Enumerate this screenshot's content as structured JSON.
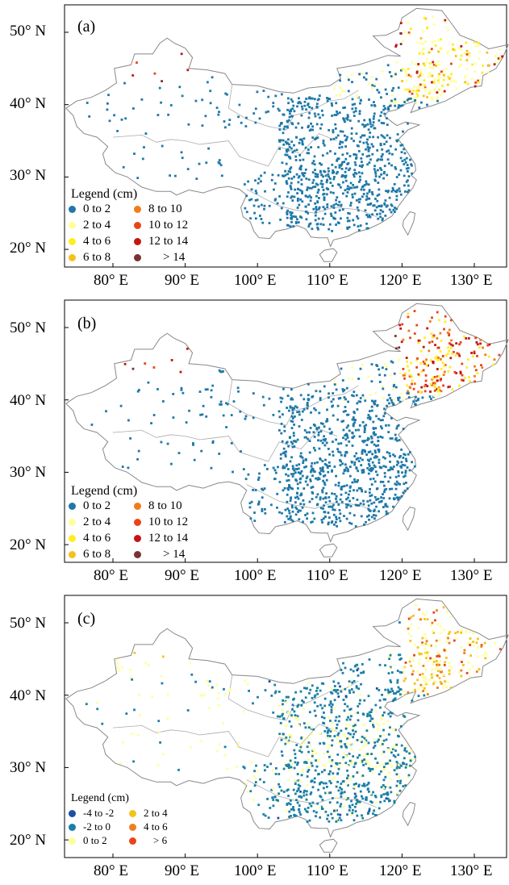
{
  "y_ticks": [
    "50° N",
    "40° N",
    "30° N",
    "20° N"
  ],
  "x_ticks": [
    "80° E",
    "90° E",
    "100° E",
    "110° E",
    "120° E",
    "130° E"
  ],
  "colors": {
    "c0_2": "#1f78a8",
    "c2_4": "#ffff9a",
    "c4_6": "#ffee22",
    "c6_8": "#f5c21b",
    "c8_10": "#f07c1a",
    "c10_12": "#e84418",
    "c12_14": "#c41414",
    "cgt14": "#7a3232",
    "cneg4": "#1c4fa6",
    "cneg2": "#1b7fa6",
    "c0_2c": "#ffff9a",
    "c2_4c": "#f5c21b",
    "c4_6c": "#ef7e1e",
    "cgt6c": "#e84418"
  },
  "panels": [
    {
      "label": "(a)",
      "legend_title": "Legend (cm)",
      "legend": [
        {
          "label": "0  to  2",
          "color": "#1f78a8"
        },
        {
          "label": "2  to  4",
          "color": "#ffff9a"
        },
        {
          "label": "4  to  6",
          "color": "#ffee22"
        },
        {
          "label": "6  to  8",
          "color": "#f5c21b"
        },
        {
          "label": "8  to  10",
          "color": "#f07c1a"
        },
        {
          "label": "10  to  12",
          "color": "#e84418"
        },
        {
          "label": "12  to  14",
          "color": "#c41414"
        },
        {
          "label": ">  14",
          "color": "#7a3232"
        }
      ]
    },
    {
      "label": "(b)",
      "legend_title": "Legend (cm)",
      "legend": [
        {
          "label": "0  to  2",
          "color": "#1f78a8"
        },
        {
          "label": "2  to  4",
          "color": "#ffff9a"
        },
        {
          "label": "4  to  6",
          "color": "#ffee22"
        },
        {
          "label": "6  to  8",
          "color": "#f5c21b"
        },
        {
          "label": "8  to  10",
          "color": "#f07c1a"
        },
        {
          "label": "10  to  12",
          "color": "#e84418"
        },
        {
          "label": "12  to  14",
          "color": "#c41414"
        },
        {
          "label": ">  14",
          "color": "#7a3232"
        }
      ]
    },
    {
      "label": "(c)",
      "legend_title": "Legend (cm)",
      "legend": [
        {
          "label": "-4  to  -2",
          "color": "#1c4fa6"
        },
        {
          "label": "-2  to  0",
          "color": "#1b7fa6"
        },
        {
          "label": "0  to  2",
          "color": "#ffff9a"
        },
        {
          "label": "2  to  4",
          "color": "#f5c21b"
        },
        {
          "label": "4  to  6",
          "color": "#ef7e1e"
        },
        {
          "label": ">  6",
          "color": "#e84418"
        }
      ]
    }
  ]
}
